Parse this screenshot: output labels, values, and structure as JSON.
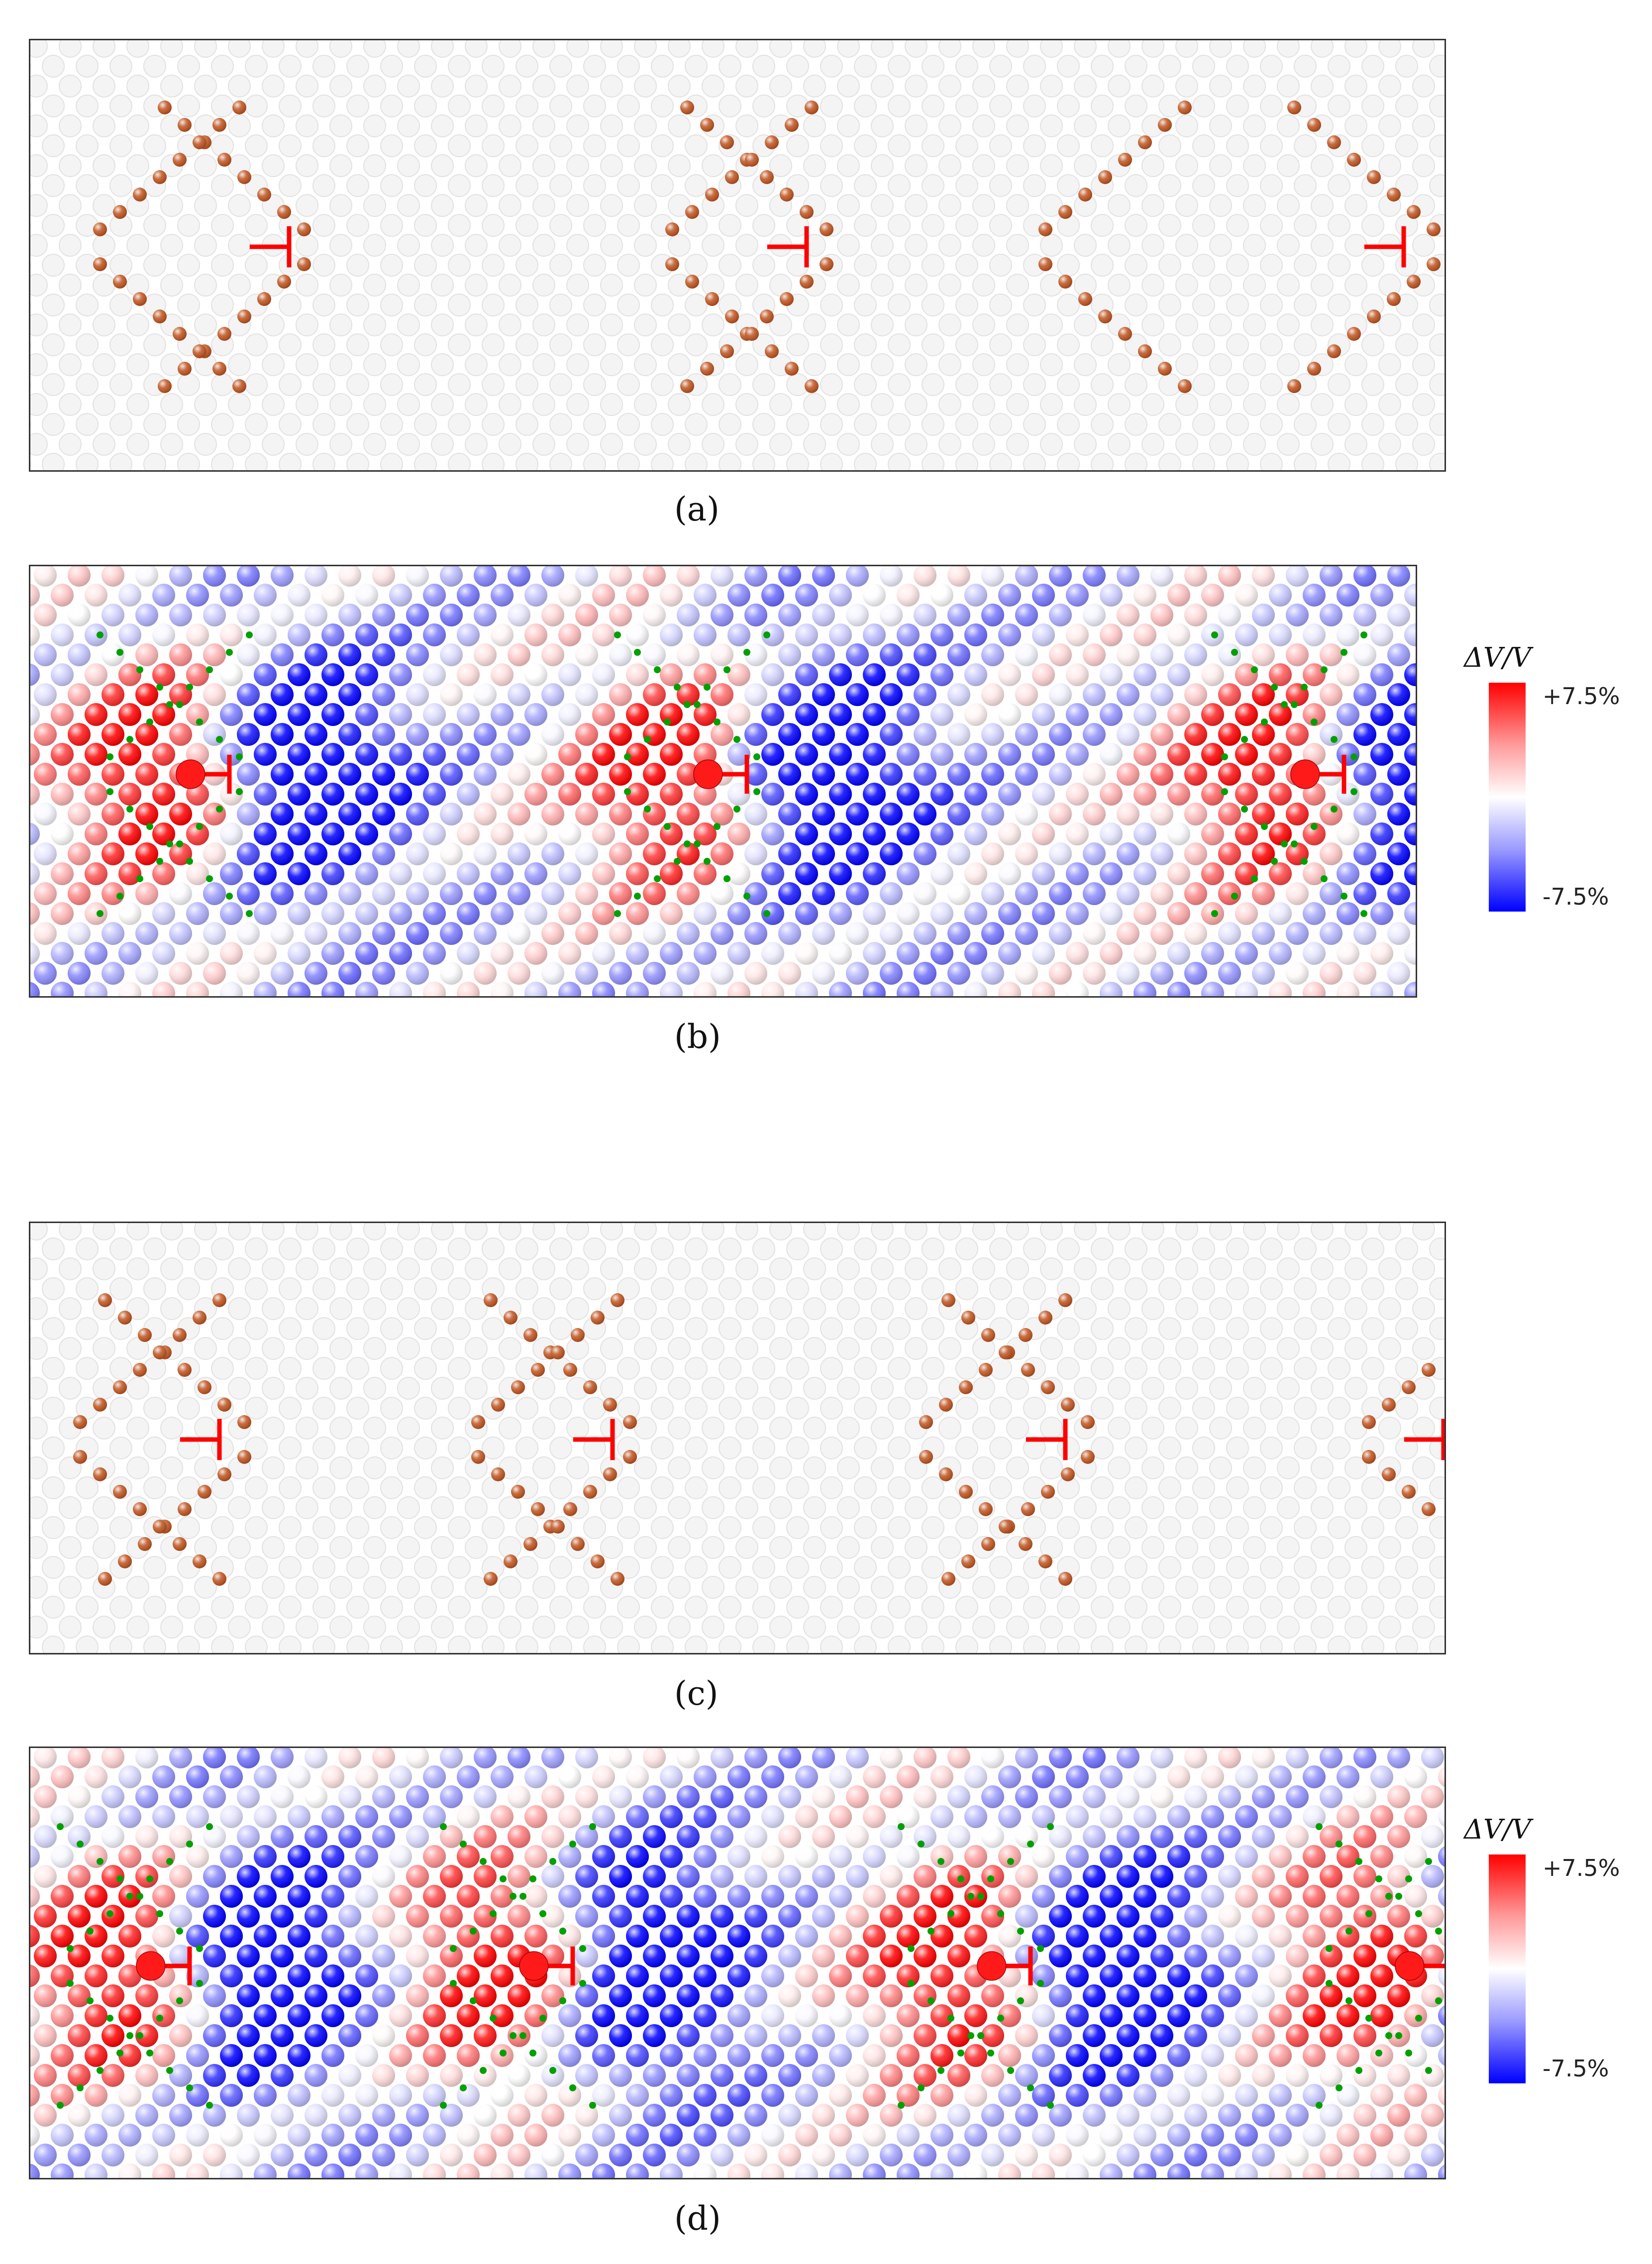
{
  "panels": [
    {
      "id": "a",
      "caption": "(a)",
      "kind": "atoms",
      "dislocations": 3
    },
    {
      "id": "b",
      "caption": "(b)",
      "kind": "strain",
      "dislocations": 3
    },
    {
      "id": "c",
      "caption": "(c)",
      "kind": "atoms",
      "dislocations": 4
    },
    {
      "id": "d",
      "caption": "(d)",
      "kind": "strain",
      "dislocations": 4
    }
  ],
  "colorbar": {
    "title": "ΔV/V",
    "max_label": "+7.5%",
    "min_label": "-7.5%",
    "max_color": "#ff0000",
    "mid_color": "#ffffff",
    "min_color": "#0000ff"
  },
  "colors": {
    "host_atom": "#f4f4f4",
    "solute_atom": "#c0541f",
    "dislocation_symbol": "#ff0000",
    "glide_marker": "#00a000",
    "frame": "#333333"
  }
}
